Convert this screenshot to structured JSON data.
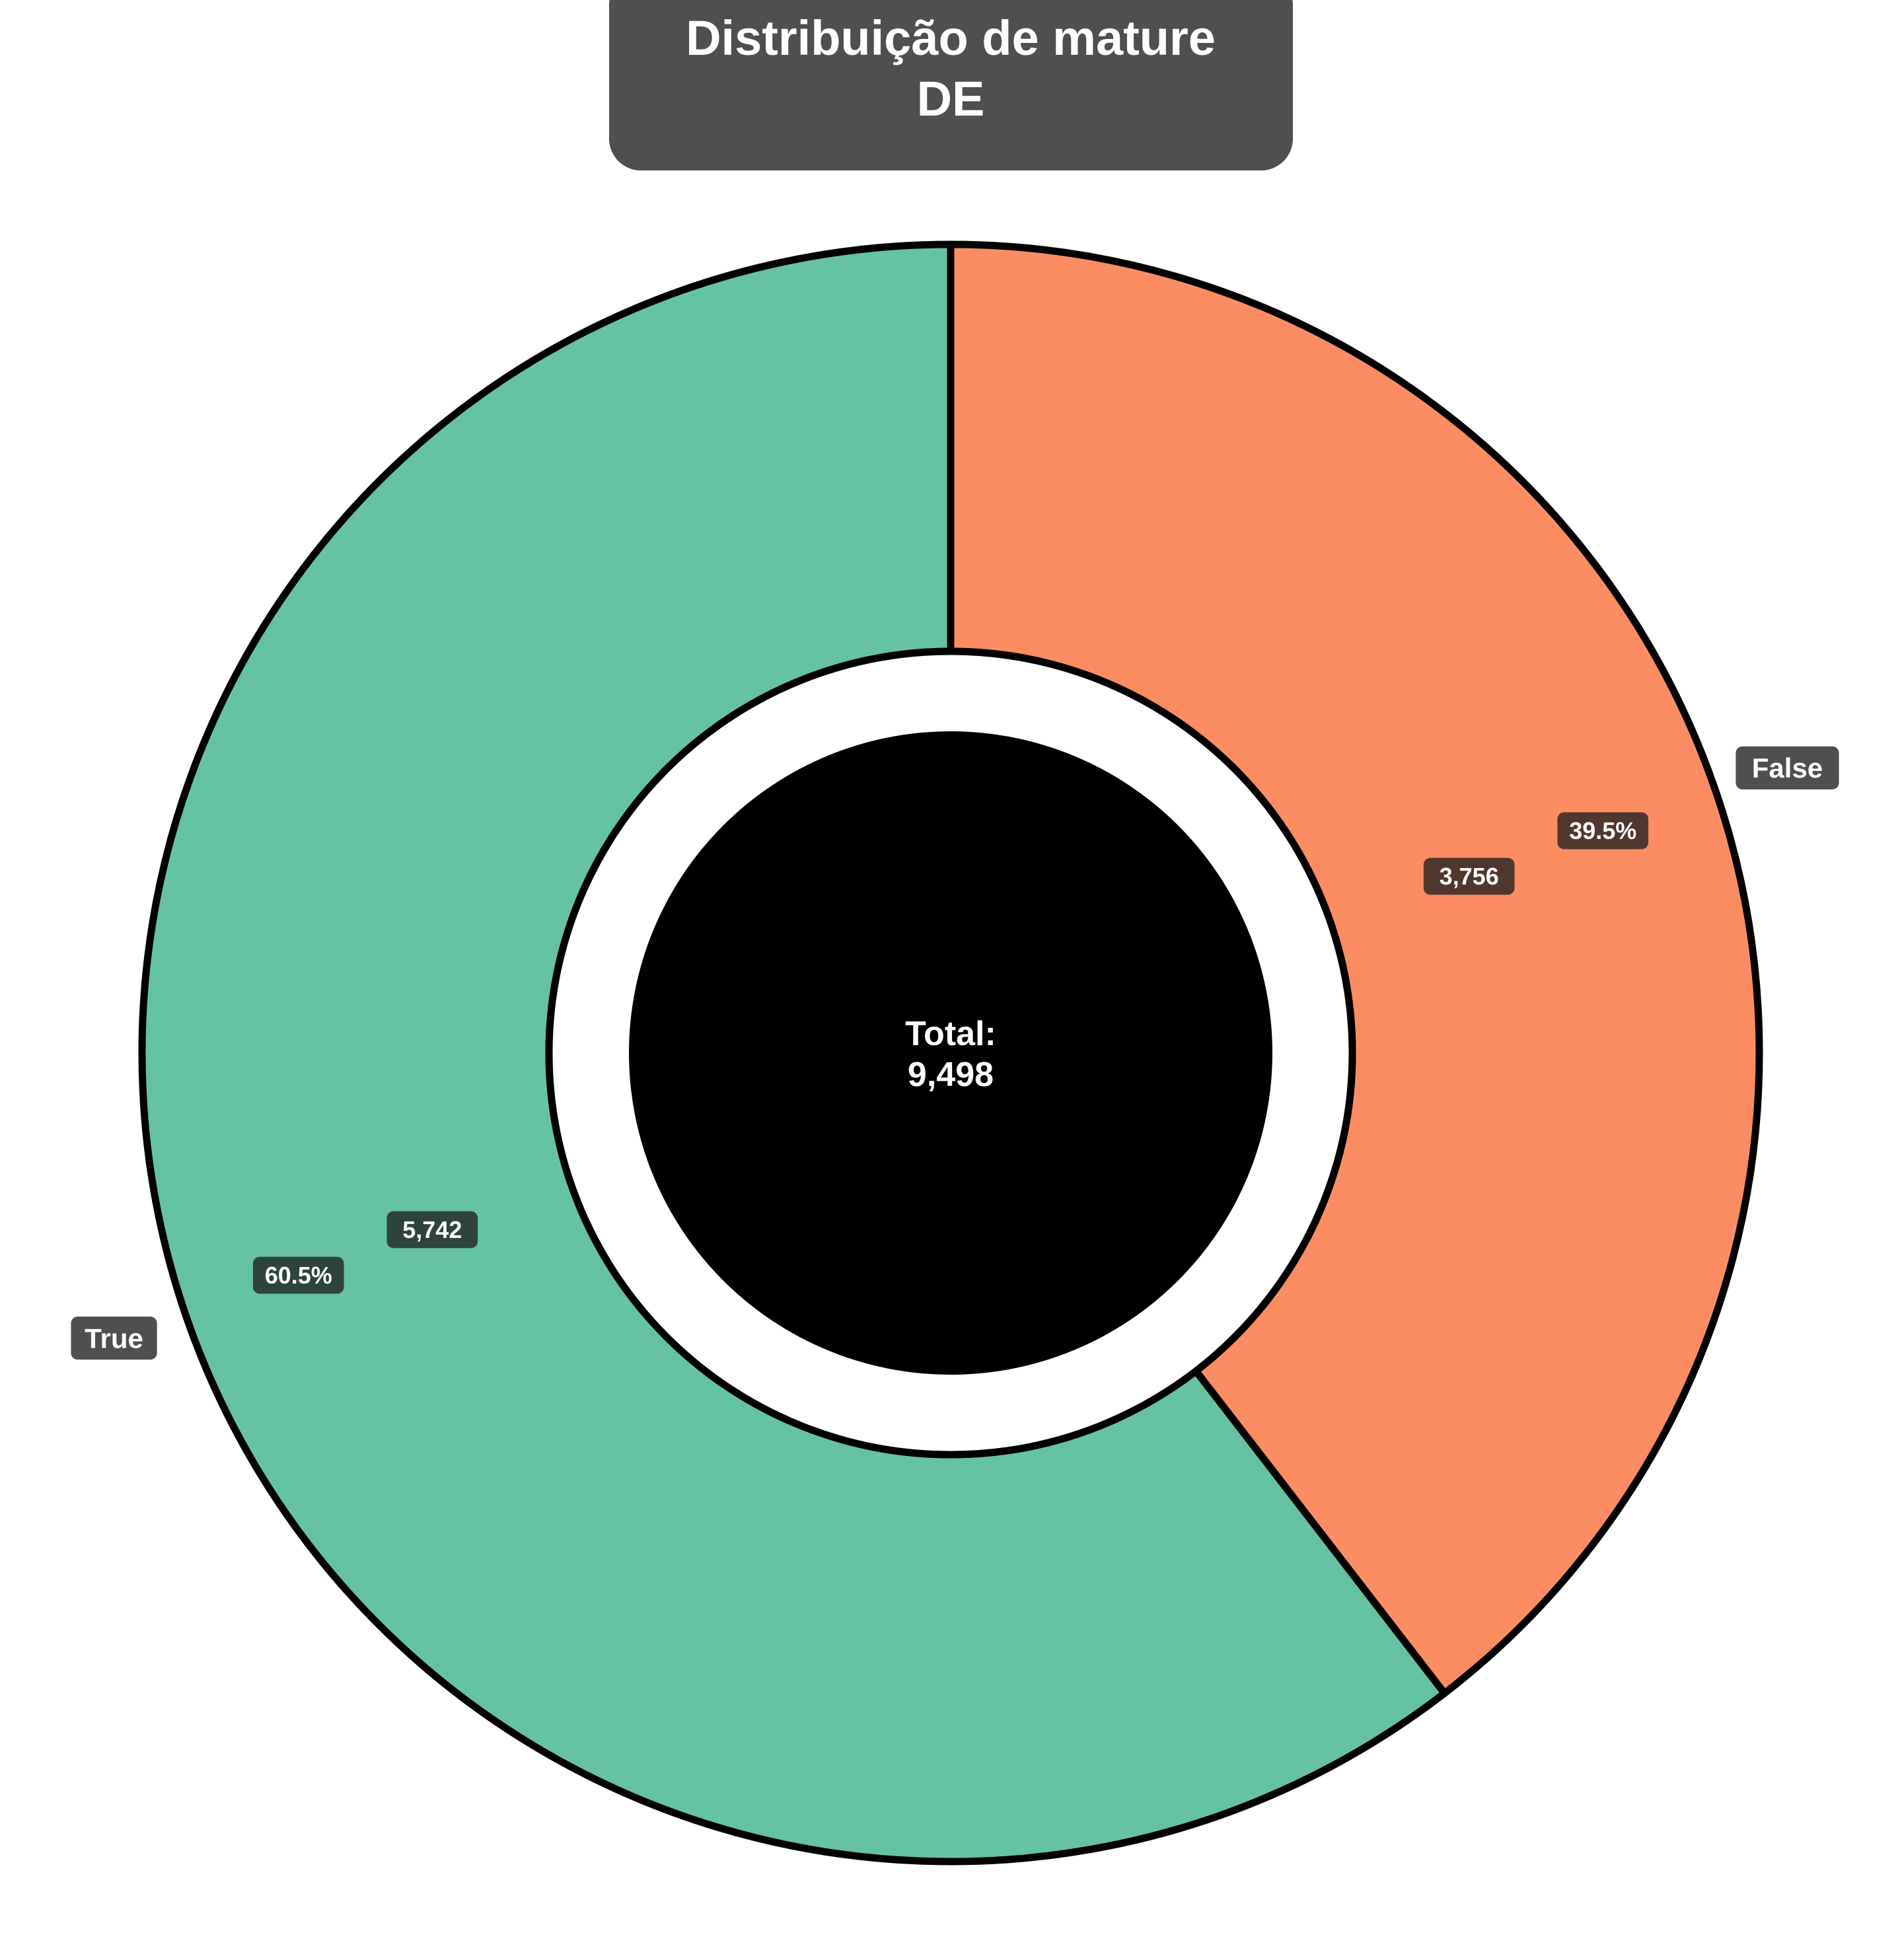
{
  "chart_data": {
    "type": "pie",
    "donut": true,
    "title_lines": [
      "Distribuição de mature",
      "DE"
    ],
    "categories": [
      "False",
      "True"
    ],
    "values": [
      3756,
      5742
    ],
    "percent_labels": [
      "39.5%",
      "60.5%"
    ],
    "value_labels": [
      "3,756",
      "5,742"
    ],
    "colors": [
      "#fc8d62",
      "#66c2a5"
    ],
    "start": "top",
    "direction": "clockwise",
    "center_label": [
      "Total:",
      "9,498"
    ],
    "center_fill": "#000000",
    "outline_color": "#000000",
    "title_box_color": "#4f4f4f",
    "label_box_color": "#4f4f4f",
    "legend": "none",
    "grid": false
  }
}
